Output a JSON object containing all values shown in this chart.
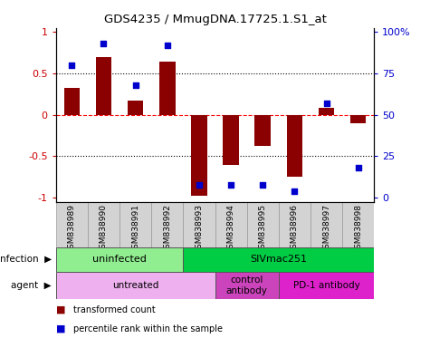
{
  "title": "GDS4235 / MmugDNA.17725.1.S1_at",
  "samples": [
    "GSM838989",
    "GSM838990",
    "GSM838991",
    "GSM838992",
    "GSM838993",
    "GSM838994",
    "GSM838995",
    "GSM838996",
    "GSM838997",
    "GSM838998"
  ],
  "transformed_count": [
    0.33,
    0.7,
    0.17,
    0.64,
    -0.98,
    -0.6,
    -0.38,
    -0.75,
    0.08,
    -0.1
  ],
  "percentile_rank": [
    0.8,
    0.93,
    0.68,
    0.92,
    0.08,
    0.08,
    0.08,
    0.04,
    0.57,
    0.18
  ],
  "bar_color": "#8B0000",
  "dot_color": "#0000CD",
  "infection_groups": [
    {
      "label": "uninfected",
      "start": 0,
      "end": 3,
      "color": "#90EE90"
    },
    {
      "label": "SIVmac251",
      "start": 4,
      "end": 9,
      "color": "#00CC44"
    }
  ],
  "agent_groups": [
    {
      "label": "untreated",
      "start": 0,
      "end": 4,
      "color": "#EEB0EE"
    },
    {
      "label": "control\nantibody",
      "start": 5,
      "end": 6,
      "color": "#CC44BB"
    },
    {
      "label": "PD-1 antibody",
      "start": 7,
      "end": 9,
      "color": "#DD22CC"
    }
  ],
  "ylim": [
    -1.05,
    1.05
  ],
  "yticks": [
    -1,
    -0.5,
    0,
    0.5,
    1
  ],
  "ytick_labels_left": [
    "-1",
    "-0.5",
    "0",
    "0.5",
    "1"
  ],
  "right_yticks": [
    0,
    0.25,
    0.5,
    0.75,
    1.0
  ],
  "right_yticklabels": [
    "0",
    "25",
    "50",
    "75",
    "100%"
  ],
  "legend_items": [
    {
      "label": "transformed count",
      "color": "#8B0000"
    },
    {
      "label": "percentile rank within the sample",
      "color": "#0000CD"
    }
  ],
  "bar_width": 0.5,
  "sample_box_color": "#D3D3D3",
  "left_yaxis_color": "#CC0000",
  "right_yaxis_color": "#0000CD"
}
